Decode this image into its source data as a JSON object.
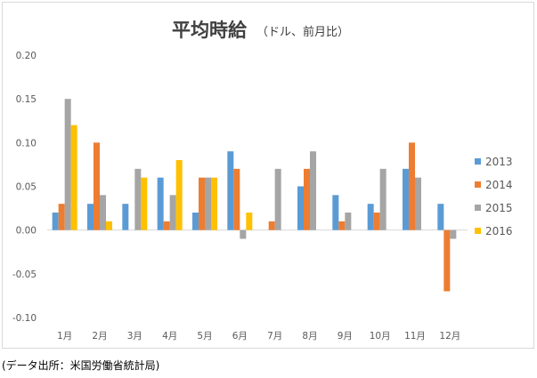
{
  "chart_data": {
    "type": "bar",
    "title": "平均時給",
    "subtitle": "（ドル、前月比）",
    "categories": [
      "1月",
      "2月",
      "3月",
      "4月",
      "5月",
      "6月",
      "7月",
      "8月",
      "9月",
      "10月",
      "11月",
      "12月"
    ],
    "series": [
      {
        "name": "2013",
        "color": "#5b9bd5",
        "values": [
          0.02,
          0.03,
          0.03,
          0.06,
          0.02,
          0.09,
          null,
          0.05,
          0.04,
          0.03,
          0.07,
          0.03
        ]
      },
      {
        "name": "2014",
        "color": "#ed7d31",
        "values": [
          0.03,
          0.1,
          null,
          0.01,
          0.06,
          0.07,
          0.01,
          0.07,
          0.01,
          0.02,
          0.1,
          -0.07
        ]
      },
      {
        "name": "2015",
        "color": "#a5a5a5",
        "values": [
          0.15,
          0.04,
          0.07,
          0.04,
          0.06,
          -0.01,
          0.07,
          0.09,
          0.02,
          0.07,
          0.06,
          -0.01
        ]
      },
      {
        "name": "2016",
        "color": "#ffc000",
        "values": [
          0.12,
          0.01,
          0.06,
          0.08,
          0.06,
          0.02,
          null,
          null,
          null,
          null,
          null,
          null
        ]
      }
    ],
    "ylim": [
      -0.1,
      0.2
    ],
    "yticks": [
      "0.20",
      "0.15",
      "0.10",
      "0.05",
      "0.00",
      "-0.05",
      "-0.10"
    ],
    "ytick_values": [
      0.2,
      0.15,
      0.1,
      0.05,
      0.0,
      -0.05,
      -0.1
    ],
    "grid": false,
    "legend_position": "right"
  },
  "source_note": "(データ出所：米国労働省統計局)"
}
